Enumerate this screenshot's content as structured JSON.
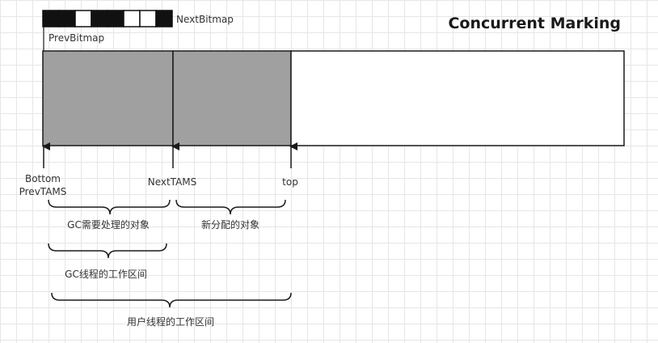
{
  "title": "Concurrent Marking",
  "bitmaps": {
    "next_label": "NextBitmap",
    "prev_label": "PrevBitmap",
    "cells": [
      "filled",
      "filled",
      "empty",
      "filled",
      "filled",
      "empty",
      "empty",
      "filled"
    ]
  },
  "region": {
    "segments": [
      {
        "name": "marked-area",
        "fill": "#a0a0a0"
      },
      {
        "name": "allocated-area",
        "fill": "#a0a0a0"
      },
      {
        "name": "free-area",
        "fill": "#ffffff"
      }
    ]
  },
  "pointers": {
    "bottom": "Bottom",
    "prev_tams": "PrevTAMS",
    "next_tams": "NextTAMS",
    "top": "top"
  },
  "braces": {
    "gc_objects": "GC需要处理的对象",
    "new_objects": "新分配的对象",
    "gc_thread_area": "GC线程的工作区间",
    "user_thread_area": "用户线程的工作区间"
  },
  "colors": {
    "stroke": "#1a1a1a",
    "text": "#333333",
    "marked": "#a0a0a0"
  }
}
